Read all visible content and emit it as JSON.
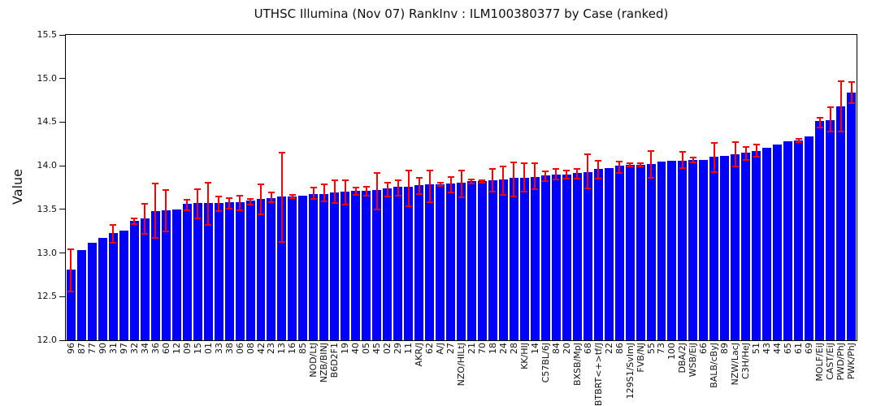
{
  "title": "UTHSC Illumina (Nov 07) RankInv : ILM100380377 by Case (ranked)",
  "chart_data": {
    "type": "bar",
    "title": "UTHSC Illumina (Nov 07) RankInv : ILM100380377 by Case (ranked)",
    "xlabel": "",
    "ylabel": "Value",
    "ylim": [
      12.0,
      15.5
    ],
    "yticks": [
      12.0,
      12.5,
      13.0,
      13.5,
      14.0,
      14.5,
      15.0,
      15.5
    ],
    "grid": false,
    "legend": null,
    "bar_color": "#0000ff",
    "error_color": "#ff0000",
    "frame_color": "#000000",
    "background_color": "#ffffff",
    "categories": [
      "96",
      "87",
      "77",
      "90",
      "31",
      "97",
      "32",
      "34",
      "36",
      "60",
      "12",
      "09",
      "15",
      "01",
      "33",
      "38",
      "06",
      "08",
      "42",
      "23",
      "13",
      "16",
      "85",
      "NOD/LtJ",
      "NZB/BINJ",
      "B6D2F1",
      "19",
      "40",
      "05",
      "45",
      "02",
      "29",
      "11",
      "AKR/J",
      "62",
      "A/J",
      "27",
      "NZO/HILtJ",
      "21",
      "70",
      "18",
      "24",
      "28",
      "KK/HIJ",
      "14",
      "C57BL/6J",
      "84",
      "20",
      "BXSB/MpJ",
      "68",
      "BTBRT<+>tf/J",
      "22",
      "86",
      "129S1/SvImJ",
      "FVB/NJ",
      "55",
      "73",
      "100",
      "DBA/2J",
      "WSB/EiJ",
      "66",
      "BALB/cByJ",
      "89",
      "NZW/LacJ",
      "C3H/HeJ",
      "51",
      "43",
      "44",
      "65",
      "61",
      "69",
      "MOLF/EiJ",
      "CAST/EiJ",
      "PWD/PhJ",
      "PWK/PhJ"
    ],
    "values": [
      12.81,
      13.03,
      13.12,
      13.17,
      13.23,
      13.26,
      13.37,
      13.4,
      13.48,
      13.49,
      13.5,
      13.56,
      13.57,
      13.57,
      13.57,
      13.58,
      13.58,
      13.6,
      13.62,
      13.63,
      13.65,
      13.65,
      13.66,
      13.68,
      13.68,
      13.69,
      13.7,
      13.71,
      13.71,
      13.72,
      13.74,
      13.76,
      13.76,
      13.78,
      13.79,
      13.79,
      13.8,
      13.81,
      13.82,
      13.82,
      13.83,
      13.84,
      13.86,
      13.86,
      13.87,
      13.89,
      13.9,
      13.9,
      13.92,
      13.93,
      13.96,
      13.97,
      14.0,
      14.01,
      14.01,
      14.02,
      14.05,
      14.06,
      14.06,
      14.07,
      14.07,
      14.1,
      14.11,
      14.13,
      14.15,
      14.17,
      14.21,
      14.24,
      14.28,
      14.29,
      14.34,
      14.51,
      14.52,
      14.68,
      14.84
    ],
    "error_low": [
      12.56,
      null,
      null,
      null,
      13.12,
      null,
      13.33,
      13.22,
      13.17,
      13.25,
      null,
      13.49,
      13.4,
      13.32,
      13.48,
      13.51,
      13.49,
      13.55,
      13.44,
      13.58,
      13.13,
      13.63,
      null,
      13.62,
      13.59,
      13.57,
      13.55,
      13.67,
      13.66,
      13.5,
      13.65,
      13.66,
      13.54,
      13.68,
      13.58,
      13.77,
      13.69,
      13.64,
      13.8,
      13.81,
      13.7,
      13.67,
      13.65,
      13.7,
      13.73,
      13.82,
      13.84,
      13.85,
      13.85,
      13.74,
      13.85,
      null,
      13.92,
      13.99,
      13.99,
      13.86,
      null,
      null,
      13.97,
      14.04,
      null,
      13.93,
      null,
      13.99,
      14.07,
      14.1,
      null,
      null,
      null,
      14.27,
      null,
      14.44,
      14.39,
      14.39,
      14.72
    ],
    "error_high": [
      13.04,
      null,
      null,
      null,
      13.32,
      null,
      13.4,
      13.56,
      13.8,
      13.72,
      null,
      13.61,
      13.73,
      13.81,
      13.65,
      13.63,
      13.66,
      13.62,
      13.79,
      13.69,
      14.15,
      13.67,
      null,
      13.75,
      13.79,
      13.83,
      13.83,
      13.75,
      13.76,
      13.92,
      13.81,
      13.83,
      13.95,
      13.86,
      13.95,
      13.81,
      13.87,
      13.95,
      13.84,
      13.83,
      13.96,
      13.99,
      14.04,
      14.03,
      14.03,
      13.94,
      13.96,
      13.95,
      13.96,
      14.13,
      14.06,
      null,
      14.05,
      14.03,
      14.03,
      14.17,
      null,
      null,
      14.16,
      14.09,
      null,
      14.26,
      null,
      14.27,
      14.22,
      14.24,
      null,
      null,
      null,
      14.31,
      null,
      14.55,
      14.67,
      14.97,
      14.96
    ]
  }
}
